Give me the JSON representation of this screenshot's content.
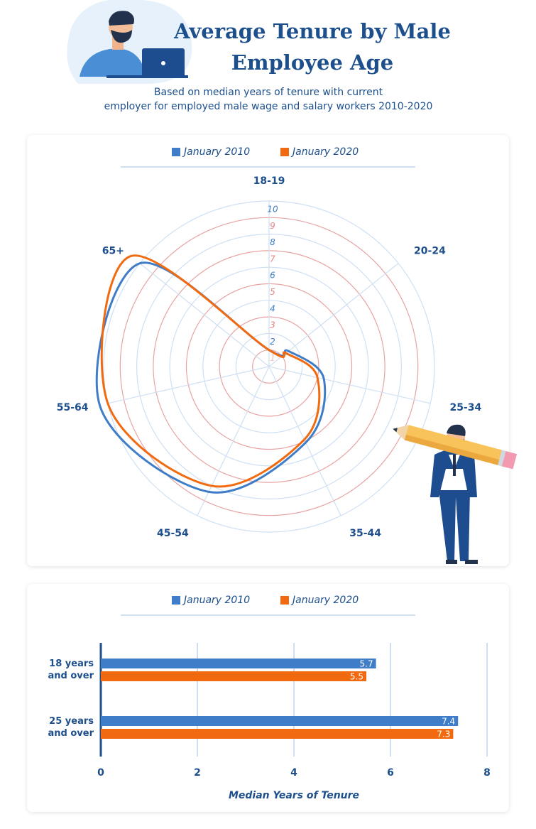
{
  "header": {
    "title": "Average Tenure by Male Employee Age",
    "subtitle": "Based on median years of tenure with current employer for employed male wage and salary workers 2010-2020"
  },
  "chart_data": [
    {
      "type": "radar",
      "categories": [
        "18-19",
        "20-24",
        "25-34",
        "35-44",
        "45-54",
        "55-64",
        "65+"
      ],
      "series": [
        {
          "name": "January 2010",
          "color": "#3f7dc8",
          "values": [
            1.0,
            1.5,
            3.4,
            5.1,
            8.4,
            10.5,
            10.0
          ]
        },
        {
          "name": "January 2020",
          "color": "#f26a10",
          "values": [
            1.0,
            1.3,
            3.0,
            4.9,
            8.0,
            10.0,
            10.7
          ]
        }
      ],
      "rlim": [
        0,
        10
      ],
      "rticks": [
        1,
        2,
        3,
        4,
        5,
        6,
        7,
        8,
        9,
        10
      ],
      "legend": "top"
    },
    {
      "type": "hbar",
      "categories": [
        "18 years and over",
        "25 years and over"
      ],
      "series": [
        {
          "name": "January 2010",
          "color": "#3f7dc8",
          "values": [
            5.7,
            7.4
          ]
        },
        {
          "name": "January 2020",
          "color": "#f26a10",
          "values": [
            5.5,
            7.3
          ]
        }
      ],
      "xlim": [
        0,
        8
      ],
      "xticks": [
        0,
        2,
        4,
        6,
        8
      ],
      "xlabel": "Median Years of Tenure",
      "grid": true,
      "legend": "top"
    }
  ]
}
